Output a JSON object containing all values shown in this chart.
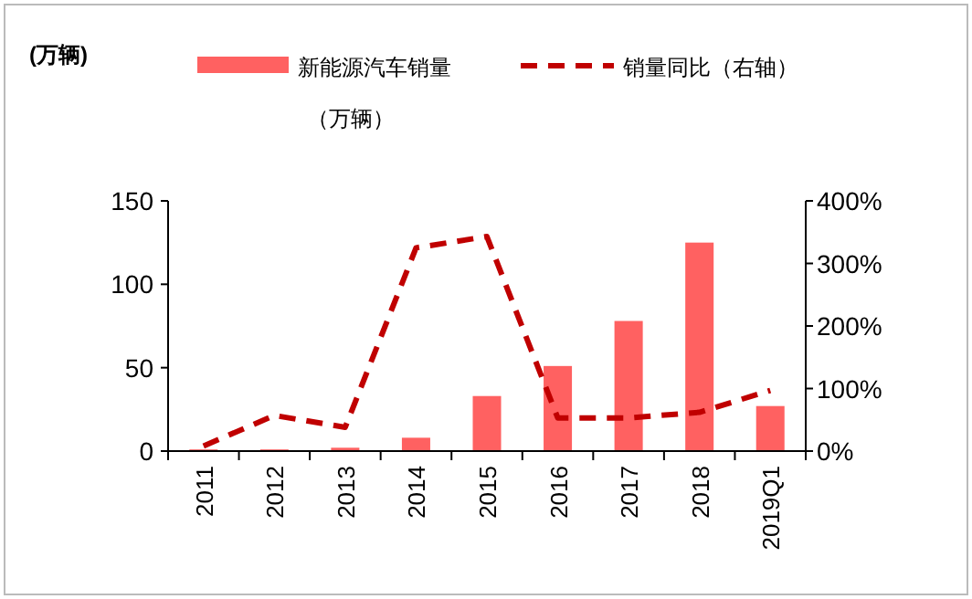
{
  "chart_data": {
    "type": "bar",
    "annotations": [
      "(万辆)"
    ],
    "categories": [
      "2011",
      "2012",
      "2013",
      "2014",
      "2015",
      "2016",
      "2017",
      "2018",
      "2019Q1"
    ],
    "series": [
      {
        "name": "新能源汽车销量（万辆）",
        "color": "#ff6161",
        "values": [
          1,
          1,
          2,
          8,
          33,
          51,
          78,
          125,
          27
        ]
      },
      {
        "name": "销量同比（右轴）",
        "type": "line",
        "axis": "y2",
        "color": "#c00000",
        "line_style": "dashed",
        "values": [
          8,
          57,
          38,
          325,
          343,
          53,
          53,
          62,
          97
        ]
      }
    ],
    "ylim": [
      0,
      150
    ],
    "yticks": [
      0,
      50,
      100,
      150
    ],
    "y2lim": [
      0,
      400
    ],
    "y2ticks": [
      {
        "value": 0,
        "label": "0%"
      },
      {
        "value": 100,
        "label": "100%"
      },
      {
        "value": 200,
        "label": "200%"
      },
      {
        "value": 300,
        "label": "300%"
      },
      {
        "value": 400,
        "label": "400%"
      }
    ],
    "legend": "top",
    "grid": false
  }
}
